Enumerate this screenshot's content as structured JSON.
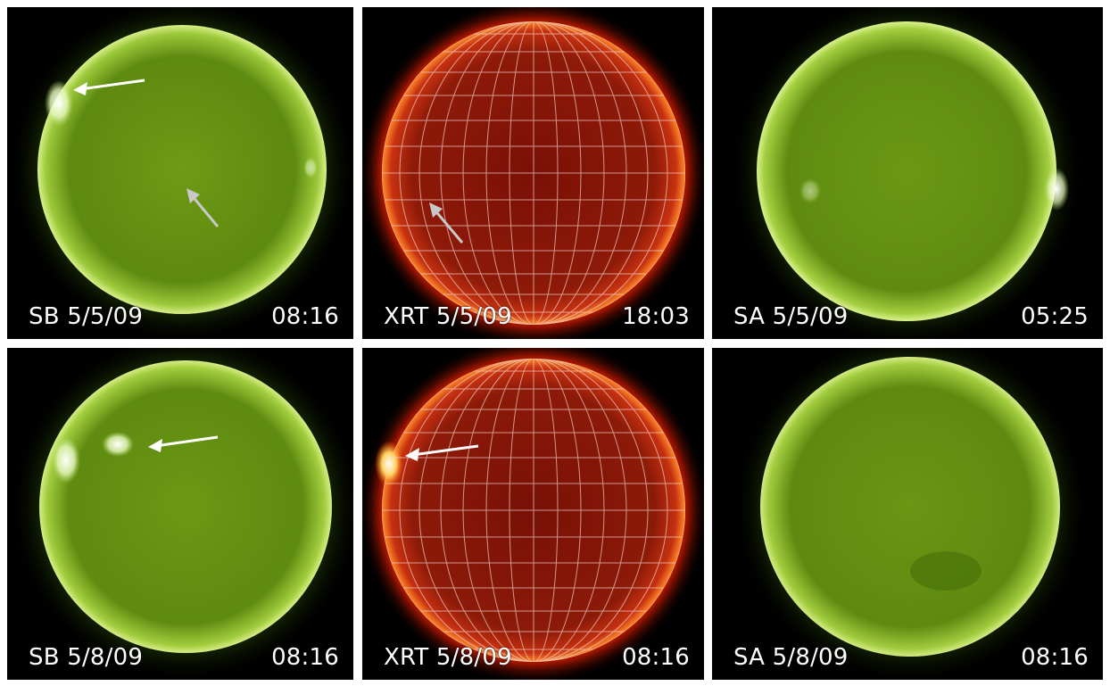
{
  "panels": [
    {
      "id": "sb-1",
      "instrument": "SB",
      "date": "5/5/09",
      "time": "08:16",
      "theme": "green"
    },
    {
      "id": "xrt-1",
      "instrument": "XRT",
      "date": "5/5/09",
      "time": "18:03",
      "theme": "red"
    },
    {
      "id": "sa-1",
      "instrument": "SA",
      "date": "5/5/09",
      "time": "05:25",
      "theme": "green"
    },
    {
      "id": "sb-2",
      "instrument": "SB",
      "date": "5/8/09",
      "time": "08:16",
      "theme": "green"
    },
    {
      "id": "xrt-2",
      "instrument": "XRT",
      "date": "5/8/09",
      "time": "08:16",
      "theme": "red"
    },
    {
      "id": "sa-2",
      "instrument": "SA",
      "date": "5/8/09",
      "time": "08:16",
      "theme": "green"
    }
  ],
  "labels": {
    "sb1_left": "SB 5/5/09",
    "sb1_right": "08:16",
    "xrt1_left": "XRT 5/5/09",
    "xrt1_right": "18:03",
    "sa1_left": "SA 5/5/09",
    "sa1_right": "05:25",
    "sb2_left": "SB 5/8/09",
    "sb2_right": "08:16",
    "xrt2_left": "XRT 5/8/09",
    "xrt2_right": "08:16",
    "sa2_left": "SA 5/8/09",
    "sa2_right": "08:16"
  },
  "colors": {
    "green_core": "#7fa81f",
    "green_mid": "#5c8a12",
    "green_rim": "#c9e87a",
    "green_glow": "#2f5a06",
    "red_core": "#8a1a08",
    "red_mid": "#b52a0c",
    "red_rim": "#ff7a1a",
    "red_glow": "#ff3a00",
    "arrow_white": "#ffffff",
    "arrow_grey": "#c8c8c8"
  }
}
